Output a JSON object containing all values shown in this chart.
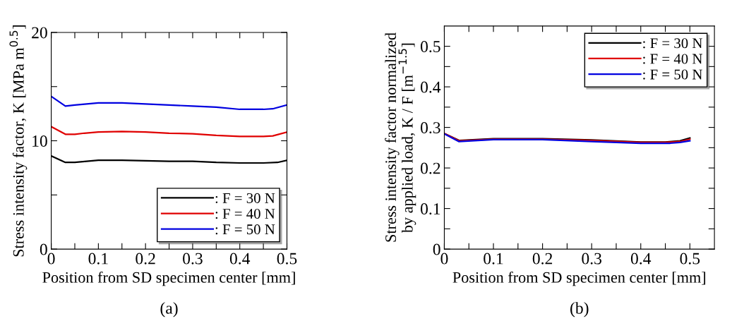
{
  "chart_data": [
    {
      "type": "line",
      "xlabel": "Position from SD specimen center [mm]",
      "ylabel": "Stress intensity factor, K [MPa m$^{0.5}$]",
      "annotations": [
        "(a)"
      ],
      "xlim": [
        0,
        0.5
      ],
      "ylim": [
        0,
        20
      ],
      "xticks": [
        0,
        {
          "value": 0.05,
          "label": null
        },
        0.1,
        {
          "value": 0.15,
          "label": null
        },
        0.2,
        {
          "value": 0.25,
          "label": null
        },
        0.3,
        {
          "value": 0.35,
          "label": null
        },
        0.4,
        {
          "value": 0.45,
          "label": null
        },
        0.5
      ],
      "yticks": [
        0,
        {
          "value": 5,
          "label": null
        },
        10,
        {
          "value": 15,
          "label": null
        },
        20
      ],
      "grid": false,
      "legend": "bottom right",
      "line_style": "solid",
      "marker": "none",
      "series": [
        {
          "name": ": F = 30 N",
          "color": "#000000",
          "x": [
            0,
            0.03,
            0.05,
            0.1,
            0.15,
            0.2,
            0.25,
            0.3,
            0.35,
            0.4,
            0.45,
            0.48,
            0.5
          ],
          "values": [
            8.6,
            8.0,
            8.0,
            8.2,
            8.2,
            8.15,
            8.1,
            8.1,
            8.0,
            7.95,
            7.95,
            8.0,
            8.2
          ]
        },
        {
          "name": ": F = 40 N",
          "color": "#e00000",
          "x": [
            0,
            0.03,
            0.05,
            0.07,
            0.1,
            0.15,
            0.2,
            0.25,
            0.3,
            0.35,
            0.4,
            0.45,
            0.47,
            0.5
          ],
          "values": [
            11.3,
            10.6,
            10.6,
            10.7,
            10.8,
            10.85,
            10.8,
            10.7,
            10.65,
            10.5,
            10.4,
            10.4,
            10.45,
            10.8
          ]
        },
        {
          "name": ": F = 50 N",
          "color": "#0000e0",
          "x": [
            0,
            0.03,
            0.05,
            0.1,
            0.15,
            0.2,
            0.25,
            0.3,
            0.35,
            0.4,
            0.45,
            0.47,
            0.5
          ],
          "values": [
            14.1,
            13.2,
            13.3,
            13.5,
            13.5,
            13.4,
            13.3,
            13.2,
            13.1,
            12.9,
            12.9,
            12.95,
            13.3
          ]
        }
      ]
    },
    {
      "type": "line",
      "xlabel": "Position from SD specimen center [mm]",
      "ylabel": "Stress intensity factor normalized\nby applied load, K / F [m$^{−1.5}$]",
      "annotations": [
        "(b)"
      ],
      "xlim": [
        0,
        0.55
      ],
      "ylim": [
        0,
        0.55
      ],
      "xticks": [
        0,
        {
          "value": 0.05,
          "label": null
        },
        0.1,
        {
          "value": 0.15,
          "label": null
        },
        0.2,
        {
          "value": 0.25,
          "label": null
        },
        0.3,
        {
          "value": 0.35,
          "label": null
        },
        0.4,
        {
          "value": 0.45,
          "label": null
        },
        0.5
      ],
      "yticks": [
        0,
        {
          "value": 0.05,
          "label": null
        },
        0.1,
        {
          "value": 0.15,
          "label": null
        },
        0.2,
        {
          "value": 0.25,
          "label": null
        },
        0.3,
        {
          "value": 0.35,
          "label": null
        },
        0.4,
        {
          "value": 0.45,
          "label": null
        },
        0.5
      ],
      "grid": false,
      "legend": "top right",
      "line_style": "solid",
      "marker": "none",
      "series": [
        {
          "name": ": F = 30 N",
          "color": "#000000",
          "x": [
            0,
            0.03,
            0.1,
            0.2,
            0.3,
            0.4,
            0.45,
            0.48,
            0.5
          ],
          "values": [
            0.285,
            0.268,
            0.272,
            0.272,
            0.269,
            0.264,
            0.264,
            0.267,
            0.274
          ]
        },
        {
          "name": ": F = 40 N",
          "color": "#e00000",
          "x": [
            0,
            0.03,
            0.1,
            0.2,
            0.3,
            0.4,
            0.45,
            0.48,
            0.5
          ],
          "values": [
            0.285,
            0.267,
            0.271,
            0.271,
            0.268,
            0.263,
            0.263,
            0.265,
            0.271
          ]
        },
        {
          "name": ": F = 50 N",
          "color": "#0000e0",
          "x": [
            0,
            0.03,
            0.1,
            0.2,
            0.3,
            0.4,
            0.46,
            0.48,
            0.5
          ],
          "values": [
            0.284,
            0.265,
            0.27,
            0.27,
            0.265,
            0.261,
            0.261,
            0.263,
            0.267
          ]
        }
      ]
    }
  ]
}
